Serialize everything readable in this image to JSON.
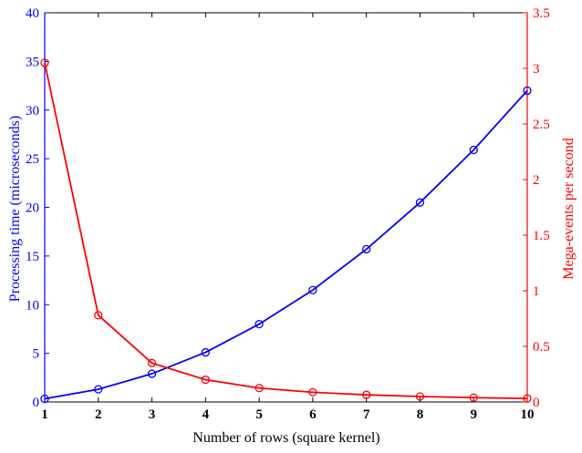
{
  "chart_data": {
    "type": "line",
    "x": [
      1,
      2,
      3,
      4,
      5,
      6,
      7,
      8,
      9,
      10
    ],
    "xlabel": "Number of rows (square kernel)",
    "xlim": [
      1,
      10
    ],
    "xticks": [
      "1",
      "2",
      "3",
      "4",
      "5",
      "6",
      "7",
      "8",
      "9",
      "10"
    ],
    "y_left": {
      "label": "Processing time (microseconds)",
      "lim": [
        0,
        40
      ],
      "ticks": [
        "0",
        "5",
        "10",
        "15",
        "20",
        "25",
        "30",
        "35",
        "40"
      ],
      "color": "#0000ff"
    },
    "y_right": {
      "label": "Mega-events per second",
      "lim": [
        0,
        3.5
      ],
      "ticks": [
        "0",
        "0.5",
        "1",
        "1.5",
        "2",
        "2.5",
        "3",
        "3.5"
      ],
      "color": "#ff0000"
    },
    "series": [
      {
        "axis": "left",
        "color": "#0000ff",
        "marker": "circle",
        "values": [
          0.33,
          1.3,
          2.9,
          5.1,
          8.0,
          11.5,
          15.7,
          20.5,
          25.9,
          32.0
        ]
      },
      {
        "axis": "right",
        "color": "#ff0000",
        "marker": "circle",
        "values": [
          3.05,
          0.78,
          0.35,
          0.2,
          0.125,
          0.087,
          0.064,
          0.049,
          0.039,
          0.031
        ]
      }
    ],
    "grid": false,
    "legend": "none"
  }
}
